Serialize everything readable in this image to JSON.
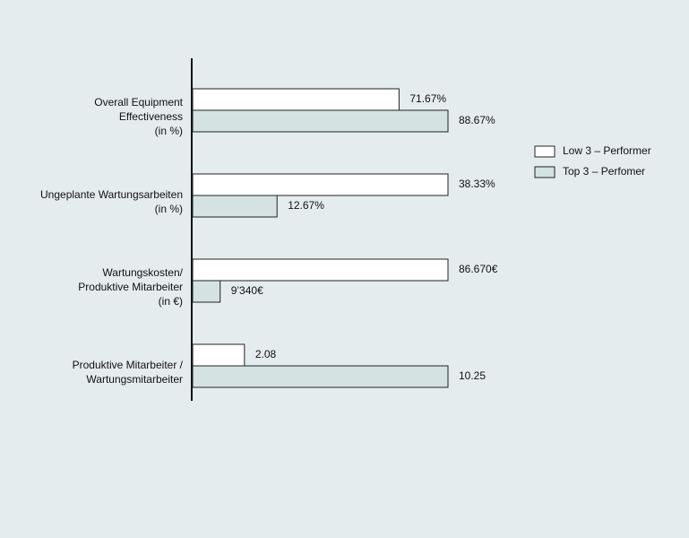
{
  "chart_data": {
    "type": "bar",
    "orientation": "horizontal",
    "categories": [
      [
        "Overall Equipment",
        "Effectiveness",
        "(in %)"
      ],
      [
        "Ungeplante Wartungsarbeiten",
        "(in %)"
      ],
      [
        "Wartungskosten/",
        "Produktive Mitarbeiter",
        "(in €)"
      ],
      [
        "Produktive Mitarbeiter /",
        "Wartungsmitarbeiter"
      ]
    ],
    "series": [
      {
        "name": "Low 3 – Performer",
        "color": "#ffffff",
        "values": [
          71.67,
          38.33,
          86670,
          2.08
        ],
        "value_labels": [
          "71.67%",
          "38.33%",
          "86.670€",
          "2.08"
        ]
      },
      {
        "name": "Top 3 – Perfomer",
        "color": "#d4e2e2",
        "values": [
          88.67,
          12.67,
          9340,
          10.25
        ],
        "value_labels": [
          "88.67%",
          "12.67%",
          "9’340€",
          "10.25"
        ]
      }
    ],
    "legend": "right"
  }
}
